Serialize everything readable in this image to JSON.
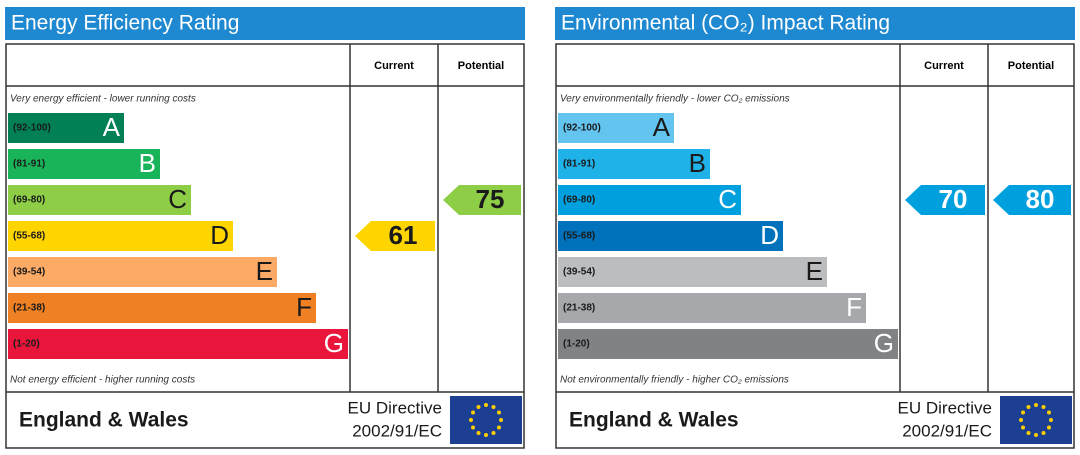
{
  "panels": [
    {
      "title": "Energy Efficiency Rating",
      "column_headers": [
        "Current",
        "Potential"
      ],
      "top_note": "Very energy efficient - lower running costs",
      "bottom_note": "Not energy efficient - higher running costs",
      "bands": [
        {
          "range": "(92-100)",
          "letter": "A",
          "color": "#008054",
          "letter_color": "#ffffff"
        },
        {
          "range": "(81-91)",
          "letter": "B",
          "color": "#19b459",
          "letter_color": "#ffffff"
        },
        {
          "range": "(69-80)",
          "letter": "C",
          "color": "#8dce46",
          "letter_color": "#1a1a1a"
        },
        {
          "range": "(55-68)",
          "letter": "D",
          "color": "#ffd500",
          "letter_color": "#1a1a1a"
        },
        {
          "range": "(39-54)",
          "letter": "E",
          "color": "#fcaa65",
          "letter_color": "#1a1a1a"
        },
        {
          "range": "(21-38)",
          "letter": "F",
          "color": "#ef8023",
          "letter_color": "#1a1a1a"
        },
        {
          "range": "(1-20)",
          "letter": "G",
          "color": "#e9153b",
          "letter_color": "#ffffff"
        }
      ],
      "current": 61,
      "potential": 75,
      "footer": {
        "region": "England & Wales",
        "directive": "EU Directive",
        "directive_code": "2002/91/EC"
      }
    },
    {
      "title": "Environmental (CO₂) Impact Rating",
      "column_headers": [
        "Current",
        "Potential"
      ],
      "top_note": "Very environmentally friendly - lower CO₂ emissions",
      "bottom_note": "Not environmentally friendly - higher CO₂ emissions",
      "bands": [
        {
          "range": "(92-100)",
          "letter": "A",
          "color": "#63c5ef",
          "letter_color": "#1a1a1a"
        },
        {
          "range": "(81-91)",
          "letter": "B",
          "color": "#1fb2e8",
          "letter_color": "#1a1a1a"
        },
        {
          "range": "(69-80)",
          "letter": "C",
          "color": "#00a0de",
          "letter_color": "#ffffff"
        },
        {
          "range": "(55-68)",
          "letter": "D",
          "color": "#0072bb",
          "letter_color": "#ffffff"
        },
        {
          "range": "(39-54)",
          "letter": "E",
          "color": "#bbbdbf",
          "letter_color": "#1a1a1a"
        },
        {
          "range": "(21-38)",
          "letter": "F",
          "color": "#a6a8ab",
          "letter_color": "#ffffff"
        },
        {
          "range": "(1-20)",
          "letter": "G",
          "color": "#808285",
          "letter_color": "#ffffff"
        }
      ],
      "current": 70,
      "potential": 80,
      "footer": {
        "region": "England & Wales",
        "directive": "EU Directive",
        "directive_code": "2002/91/EC"
      }
    }
  ]
}
